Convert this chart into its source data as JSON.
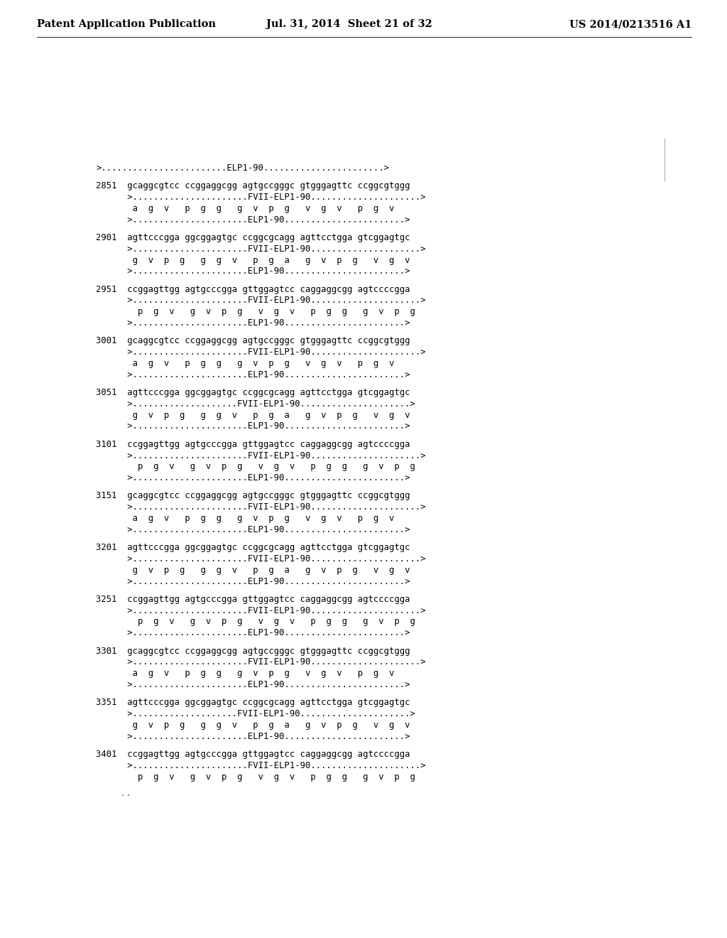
{
  "header_left": "Patent Application Publication",
  "header_middle": "Jul. 31, 2014  Sheet 21 of 32",
  "header_right": "US 2014/0213516 A1",
  "background_color": "#ffffff",
  "text_color": "#000000",
  "font_size_header": 10.5,
  "font_size_body": 8.8,
  "lines": [
    ">........................ELP1-90.......................>",
    "",
    "2851  gcaggcgtcc ccggaggcgg agtgccgggc gtgggagttc ccggcgtggg",
    "      >......................FVII-ELP1-90.....................>",
    "       a  g  v   p  g  g   g  v  p  g   v  g  v   p  g  v",
    "      >......................ELP1-90.......................>",
    "",
    "2901  agttcccgga ggcggagtgc ccggcgcagg agttcctgga gtcggagtgc",
    "      >......................FVII-ELP1-90.....................>",
    "       g  v  p  g   g  g  v   p  g  a   g  v  p  g   v  g  v",
    "      >......................ELP1-90.......................>",
    "",
    "2951  ccggagttgg agtgcccgga gttggagtcc caggaggcgg agtccccgga",
    "      >......................FVII-ELP1-90.....................>",
    "        p  g  v   g  v  p  g   v  g  v   p  g  g   g  v  p  g",
    "      >......................ELP1-90.......................>",
    "",
    "3001  gcaggcgtcc ccggaggcgg agtgccgggc gtgggagttc ccggcgtggg",
    "      >......................FVII-ELP1-90.....................>",
    "       a  g  v   p  g  g   g  v  p  g   v  g  v   p  g  v",
    "      >......................ELP1-90.......................>",
    "",
    "3051  agttcccgga ggcggagtgc ccggcgcagg agttcctgga gtcggagtgc",
    "      >....................FVII-ELP1-90.....................>",
    "       g  v  p  g   g  g  v   p  g  a   g  v  p  g   v  g  v",
    "      >......................ELP1-90.......................>",
    "",
    "3101  ccggagttgg agtgcccgga gttggagtcc caggaggcgg agtccccgga",
    "      >......................FVII-ELP1-90.....................>",
    "        p  g  v   g  v  p  g   v  g  v   p  g  g   g  v  p  g",
    "      >......................ELP1-90.......................>",
    "",
    "3151  gcaggcgtcc ccggaggcgg agtgccgggc gtgggagttc ccggcgtggg",
    "      >......................FVII-ELP1-90.....................>",
    "       a  g  v   p  g  g   g  v  p  g   v  g  v   p  g  v",
    "      >......................ELP1-90.......................>",
    "",
    "3201  agttcccgga ggcggagtgc ccggcgcagg agttcctgga gtcggagtgc",
    "      >......................FVII-ELP1-90.....................>",
    "       g  v  p  g   g  g  v   p  g  a   g  v  p  g   v  g  v",
    "      >......................ELP1-90.......................>",
    "",
    "3251  ccggagttgg agtgcccgga gttggagtcc caggaggcgg agtccccgga",
    "      >......................FVII-ELP1-90.....................>",
    "        p  g  v   g  v  p  g   v  g  v   p  g  g   g  v  p  g",
    "      >......................ELP1-90.......................>",
    "",
    "3301  gcaggcgtcc ccggaggcgg agtgccgggc gtgggagttc ccggcgtggg",
    "      >......................FVII-ELP1-90.....................>",
    "       a  g  v   p  g  g   g  v  p  g   v  g  v   p  g  v",
    "      >......................ELP1-90.......................>",
    "",
    "3351  agttcccgga ggcggagtgc ccggcgcagg agttcctgga gtcggagtgc",
    "      >....................FVII-ELP1-90.....................>",
    "       g  v  p  g   g  g  v   p  g  a   g  v  p  g   v  g  v",
    "      >......................ELP1-90.......................>",
    "",
    "3401  ccggagttgg agtgcccgga gttggagtcc caggaggcgg agtccccgga",
    "      >......................FVII-ELP1-90.....................>",
    "        p  g  v   g  v  p  g   v  g  v   p  g  g   g  v  p  g"
  ],
  "footer_note": "  .."
}
